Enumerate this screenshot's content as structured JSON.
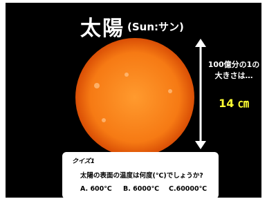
{
  "slide": {
    "title": "太陽",
    "subtitle": "(Sun:サン)",
    "scale_line1": "100億分の1の",
    "scale_line2": "大きさは…",
    "size": "14 ㎝",
    "quiz": {
      "label": "クイズ1",
      "question": "太陽の表面の温度は何度(℃)でしょうか?",
      "options": [
        "A. 600℃",
        "B. 6000℃",
        "C.60000℃"
      ]
    }
  }
}
